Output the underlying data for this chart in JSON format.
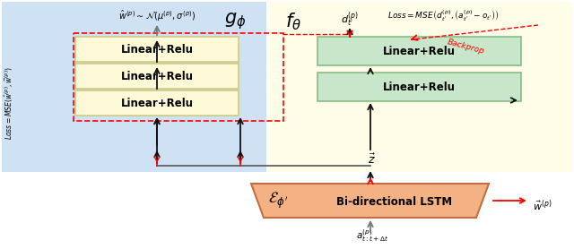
{
  "bg_color": "#ffffff",
  "left_bg": "#cfe2f3",
  "right_bg": "#fefde8",
  "yellow_box": "#fef9d7",
  "yellow_box_edge": "#cccc88",
  "green_box": "#c8e6c9",
  "green_box_edge": "#88bb88",
  "lstm_box": "#f4b183",
  "lstm_box_edge": "#c07040",
  "red_dashed": "#ff0000",
  "black_arrow": "#111111",
  "gray_arrow": "#777777",
  "title_left": "$g_\\phi$",
  "title_right": "$f_\\theta$",
  "label_encoder": "$\\mathcal{E}_{\\phi^{\\prime}}$",
  "label_lstm": "Bi-directional LSTM",
  "label_linear": "Linear+Relu",
  "label_z": "$\\vec{z}$",
  "label_w_hat": "$\\hat{w}^{(p)}\\sim\\mathcal{N}(\\mu^{(p)},\\sigma^{(p)})$",
  "label_w_vec": "$\\vec{w}^{(p)}$",
  "label_d": "$d_{t^{\\prime}}^{(p)}$",
  "label_a": "$a_{t:t+\\Delta t}^{(p)}$",
  "label_loss_left": "$Loss=MSE(\\hat{w}^{(p)},\\vec{w}^{(p)})$",
  "label_loss_right": "$Loss=MSE\\left(d_{t^{\\prime}}^{(p)},\\left(a_{t^{\\prime}}^{(p)}-o_{t^{\\prime}}\\right)\\right)$",
  "label_backprop": "Backprop"
}
